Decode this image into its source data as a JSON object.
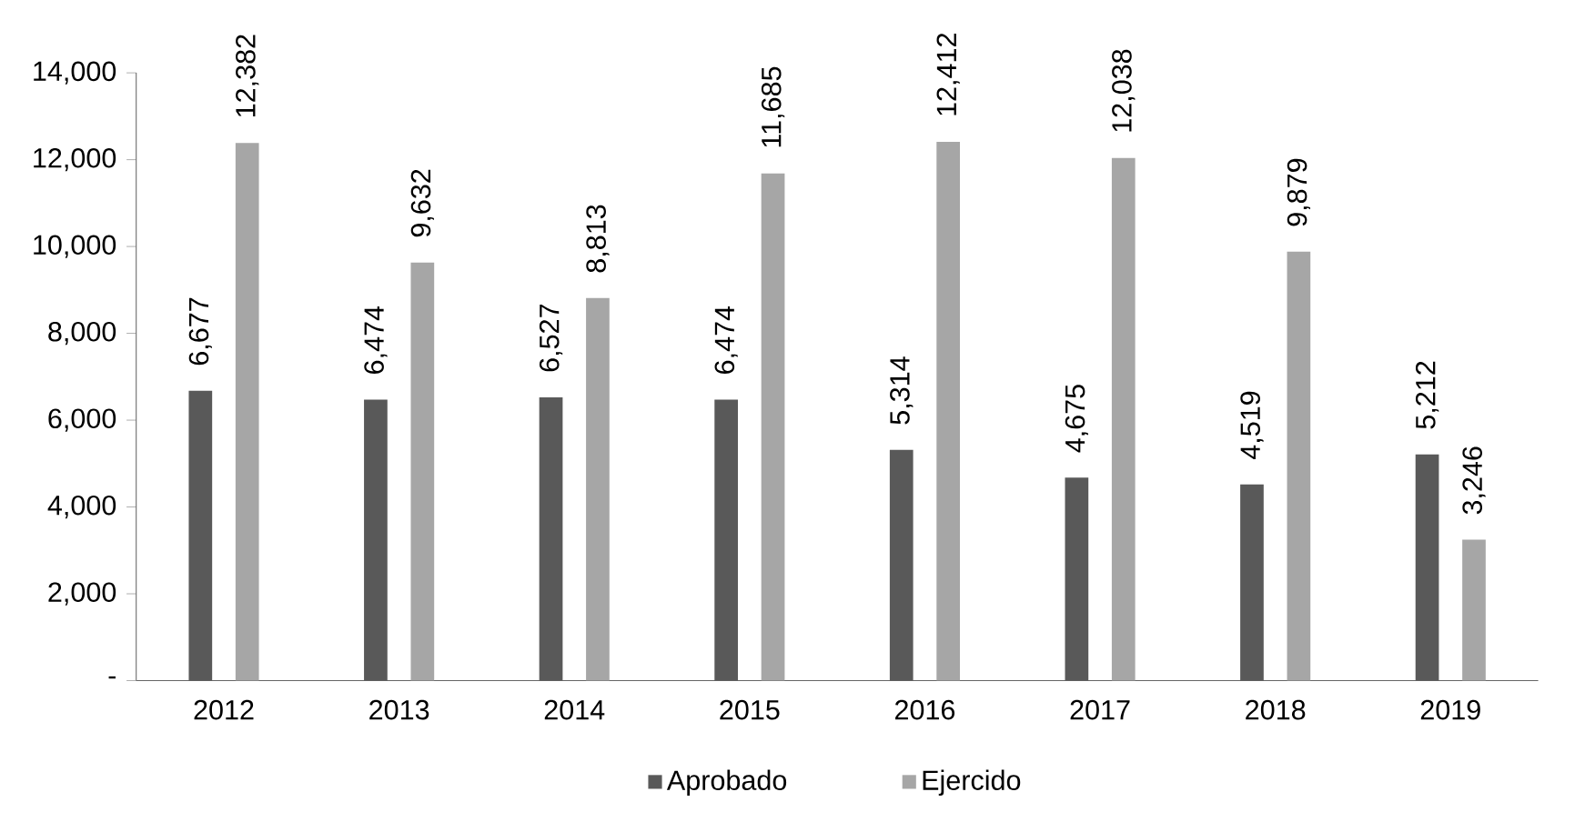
{
  "chart_data": {
    "type": "bar",
    "categories": [
      "2012",
      "2013",
      "2014",
      "2015",
      "2016",
      "2017",
      "2018",
      "2019"
    ],
    "series": [
      {
        "name": "Aprobado",
        "color": "#595959",
        "values": [
          6677,
          6474,
          6527,
          6474,
          5314,
          4675,
          4519,
          5212
        ],
        "value_labels": [
          "6,677",
          "6,474",
          "6,527",
          "6,474",
          "5,314",
          "4,675",
          "4,519",
          "5,212"
        ]
      },
      {
        "name": "Ejercido",
        "color": "#a6a6a6",
        "values": [
          12382,
          9632,
          8813,
          11685,
          12412,
          12038,
          9879,
          3246
        ],
        "value_labels": [
          "12,382",
          "9,632",
          "8,813",
          "11,685",
          "12,412",
          "12,038",
          "9,879",
          "3,246"
        ]
      }
    ],
    "ylim": [
      0,
      14000
    ],
    "yticks": [
      {
        "value": 0,
        "label": "-"
      },
      {
        "value": 2000,
        "label": "2,000"
      },
      {
        "value": 4000,
        "label": "4,000"
      },
      {
        "value": 6000,
        "label": "6,000"
      },
      {
        "value": 8000,
        "label": "8,000"
      },
      {
        "value": 10000,
        "label": "10,000"
      },
      {
        "value": 12000,
        "label": "12,000"
      },
      {
        "value": 14000,
        "label": "14,000"
      }
    ],
    "grid": false,
    "legend": "bottom"
  }
}
